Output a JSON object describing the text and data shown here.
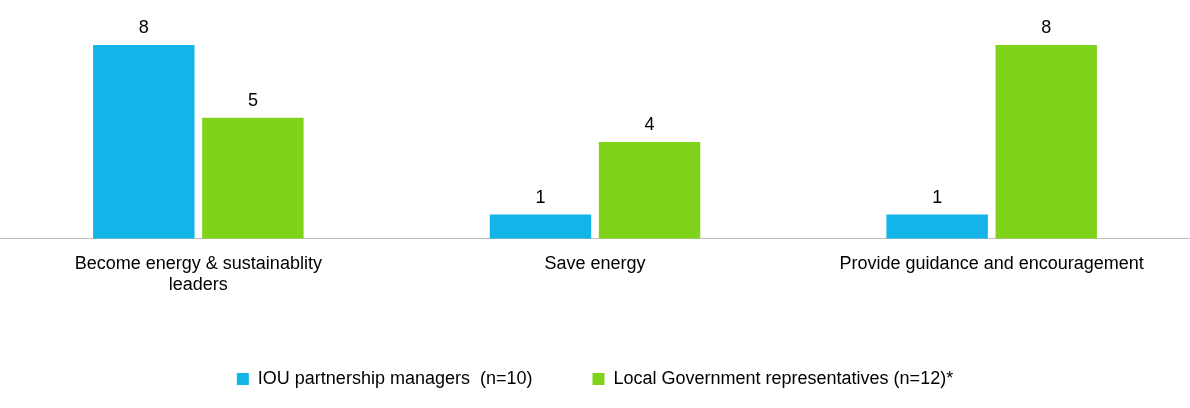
{
  "chart_data": {
    "type": "bar",
    "categories": [
      "Become energy & sustainablity leaders",
      "Save energy",
      "Provide guidance and encouragement"
    ],
    "series": [
      {
        "name": "IOU partnership managers  (n=10)",
        "color": "#13b4e8",
        "values": [
          8,
          1,
          1
        ]
      },
      {
        "name": "Local Government representatives (n=12)*",
        "color": "#80d31b",
        "values": [
          5,
          4,
          8
        ]
      }
    ],
    "data_labels": true,
    "legend": "bottom",
    "grid": false
  }
}
